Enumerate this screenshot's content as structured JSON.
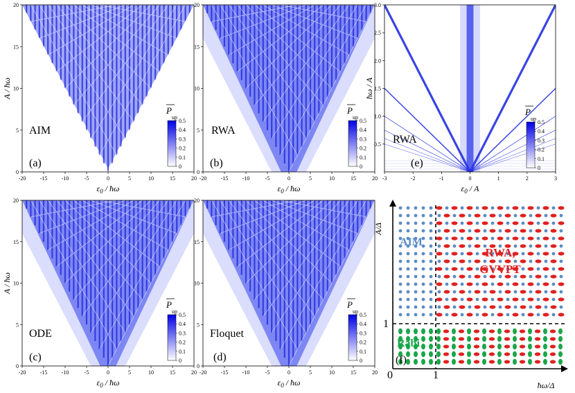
{
  "chart_data": [
    {
      "type": "heatmap",
      "panel": "(a)",
      "method": "AIM",
      "xlabel": "ε0 / ħω",
      "ylabel": "A / ħω",
      "xlim": [
        -20,
        20
      ],
      "ylim": [
        0,
        20
      ],
      "xticks": [
        -20,
        -15,
        -10,
        -5,
        0,
        5,
        10,
        15,
        20
      ],
      "yticks": [
        0,
        5,
        10,
        15,
        20
      ],
      "colorbar": {
        "title": "P up (averaged)",
        "title_main": "P",
        "title_sub": "up",
        "range": [
          0,
          0.5
        ],
        "ticks": [
          0,
          0.1,
          0.2,
          0.3,
          0.4,
          0.5
        ]
      },
      "description_values": {
        "pattern": "resonance fan bounded by |ε0| < A"
      }
    },
    {
      "type": "heatmap",
      "panel": "(b)",
      "method": "RWA",
      "xlabel": "ε0 / ħω",
      "ylabel": "",
      "xlim": [
        -20,
        20
      ],
      "ylim": [
        0,
        20
      ],
      "xticks": [
        -20,
        -15,
        -10,
        -5,
        0,
        5,
        10,
        15,
        20
      ],
      "yticks": [
        0,
        5,
        10,
        15,
        20
      ],
      "colorbar": {
        "title_main": "P",
        "title_sub": "up",
        "range": [
          0,
          0.5
        ],
        "ticks": [
          0,
          0.1,
          0.2,
          0.3,
          0.4,
          0.5
        ]
      }
    },
    {
      "type": "heatmap",
      "panel": "(e)",
      "method": "RWA",
      "xlabel": "ε0 / A",
      "ylabel": "ħω / A",
      "xlim": [
        -3,
        3
      ],
      "ylim": [
        0,
        3
      ],
      "xticks": [
        -3,
        -2,
        -1,
        0,
        1,
        2,
        3
      ],
      "yticks": [
        0.5,
        1.0,
        1.5,
        2.0,
        2.5,
        3.0
      ],
      "ytick_labels": [
        "0.5",
        "1.0",
        "1.5",
        "2.0",
        "2.5",
        "3.0"
      ],
      "colorbar": {
        "title_main": "P",
        "title_sub": "up",
        "range": [
          0,
          0.5
        ],
        "ticks": [
          0,
          0.1,
          0.2,
          0.3,
          0.4,
          0.5
        ]
      }
    },
    {
      "type": "heatmap",
      "panel": "(c)",
      "method": "ODE",
      "xlabel": "ε0 / ħω",
      "ylabel": "A / ħω",
      "xlim": [
        -20,
        20
      ],
      "ylim": [
        0,
        20
      ],
      "xticks": [
        -20,
        -15,
        -10,
        -5,
        0,
        5,
        10,
        15,
        20
      ],
      "yticks": [
        0,
        5,
        10,
        15,
        20
      ],
      "colorbar": {
        "title_main": "P",
        "title_sub": "up",
        "range": [
          0,
          0.5
        ],
        "ticks": [
          0,
          0.1,
          0.2,
          0.3,
          0.4,
          0.5
        ]
      }
    },
    {
      "type": "heatmap",
      "panel": "(d)",
      "method": "Floquet",
      "xlabel": "ε0 / ħω",
      "ylabel": "",
      "xlim": [
        -20,
        20
      ],
      "ylim": [
        0,
        20
      ],
      "xticks": [
        -20,
        -15,
        -10,
        -5,
        0,
        5,
        10,
        15,
        20
      ],
      "yticks": [
        0,
        5,
        10,
        15,
        20
      ],
      "colorbar": {
        "title_main": "P",
        "title_sub": "up",
        "range": [
          0,
          0.5
        ],
        "ticks": [
          0,
          0.1,
          0.2,
          0.3,
          0.4,
          0.5
        ]
      }
    },
    {
      "type": "scatter",
      "panel": "(f)",
      "title": "",
      "xlabel": "ħω/Δ",
      "ylabel": "A/Δ",
      "xtick_labels": [
        "0",
        "1"
      ],
      "ytick_labels": [
        "1"
      ],
      "region_labels": [
        "AIM",
        "RWA,",
        "GVVPT",
        "Rabi"
      ],
      "colors": {
        "AIM": "#5b8cc4",
        "RWA": "#e02020",
        "Rabi": "#1aa64a"
      },
      "regions": [
        {
          "name": "AIM",
          "x": [
            0,
            1
          ],
          "y": [
            1,
            "top"
          ]
        },
        {
          "name": "RWA, GVVPT",
          "x": [
            1,
            "right"
          ],
          "y": [
            1,
            "top"
          ]
        },
        {
          "name": "Rabi",
          "x": [
            0,
            "right"
          ],
          "y": [
            0,
            1
          ]
        }
      ]
    }
  ]
}
